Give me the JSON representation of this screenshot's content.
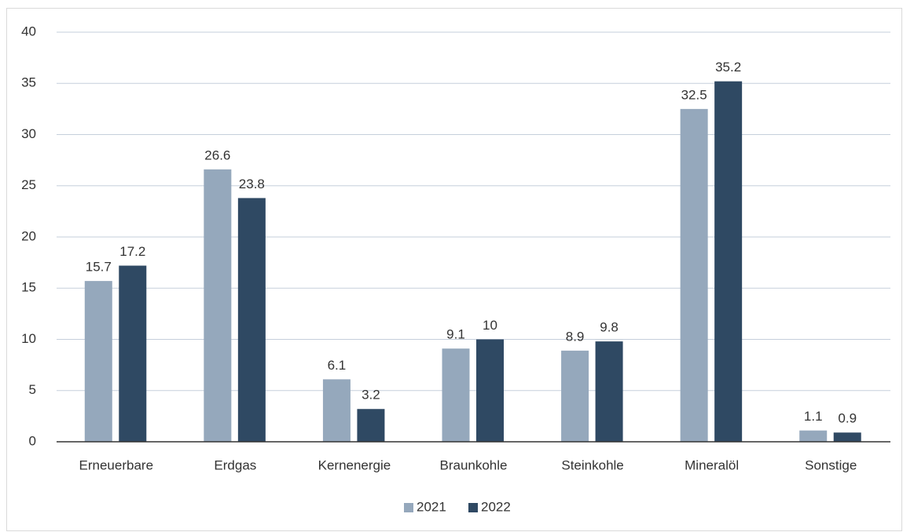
{
  "chart_data": {
    "type": "bar",
    "categories": [
      "Erneuerbare",
      "Erdgas",
      "Kernenergie",
      "Braunkohle",
      "Steinkohle",
      "Mineralöl",
      "Sonstige"
    ],
    "series": [
      {
        "name": "2021",
        "color": "#95a8bc",
        "values": [
          15.7,
          26.6,
          6.1,
          9.1,
          8.9,
          32.5,
          1.1
        ]
      },
      {
        "name": "2022",
        "color": "#2f4963",
        "values": [
          17.2,
          23.8,
          3.2,
          10,
          9.8,
          35.2,
          0.9
        ]
      }
    ],
    "ylim": [
      0,
      40
    ],
    "yticks": [
      0,
      5,
      10,
      15,
      20,
      25,
      30,
      35,
      40
    ],
    "grid": true,
    "legend": "bottom"
  }
}
